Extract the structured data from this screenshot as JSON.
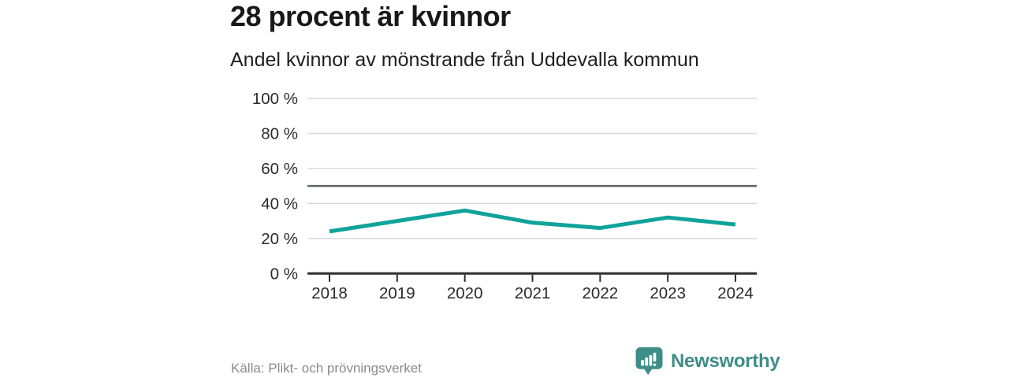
{
  "page": {
    "title": "28 procent är kvinnor",
    "subtitle": "Andel kvinnor av mönstrande från Uddevalla kommun",
    "source": "Källa: Plikt- och prövningsverket",
    "brand": {
      "name": "Newsworthy",
      "icon": "bar-chart-speech-bubble-icon"
    }
  },
  "colors": {
    "line": "#0fa39a",
    "brand_teal": "#3e8d87",
    "grid": "#d9d9d9",
    "reference_line": "#5f6368",
    "axis": "#2e2e2e",
    "tick_label": "#2b2b2b",
    "title_text": "#191919",
    "muted_text": "#8a8a8a",
    "background": "#ffffff"
  },
  "chart_data": {
    "type": "line",
    "title": "28 procent är kvinnor",
    "subtitle": "Andel kvinnor av mönstrande från Uddevalla kommun",
    "x": [
      "2018",
      "2019",
      "2020",
      "2021",
      "2022",
      "2023",
      "2024"
    ],
    "series": [
      {
        "name": "Andel kvinnor av mönstrande",
        "color": "#0fa39a",
        "values": [
          24,
          30,
          36,
          29,
          26,
          32,
          28
        ]
      }
    ],
    "unit": "%",
    "xlabel": "",
    "ylabel": "",
    "ylim": [
      0,
      100
    ],
    "yticks": [
      0,
      20,
      40,
      60,
      80,
      100
    ],
    "ytick_labels": [
      "0 %",
      "20 %",
      "40 %",
      "60 %",
      "80 %",
      "100 %"
    ],
    "reference_line": 50,
    "grid": "horizontal",
    "legend": "none",
    "line_width": 5
  }
}
